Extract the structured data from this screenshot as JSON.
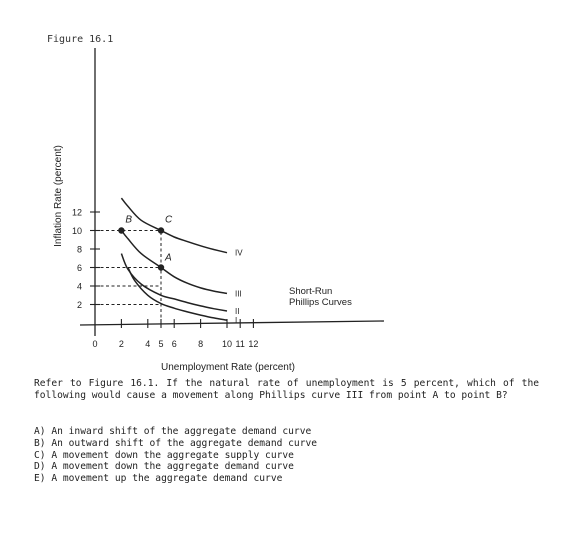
{
  "figure_label": "Figure 16.1",
  "chart_data": {
    "type": "line",
    "xlabel": "Unemployment Rate (percent)",
    "ylabel": "Inflation Rate (percent)",
    "xlim": [
      0,
      13
    ],
    "ylim": [
      0,
      14
    ],
    "x_ticks": [
      0,
      2,
      4,
      5,
      6,
      8,
      10,
      11,
      12
    ],
    "y_ticks": [
      2,
      4,
      6,
      8,
      10,
      12
    ],
    "series": [
      {
        "name": "I",
        "points": [
          [
            2.5,
            6.0
          ],
          [
            3.0,
            4.6
          ],
          [
            4.0,
            3.0
          ],
          [
            5.0,
            2.1
          ],
          [
            6.0,
            1.6
          ],
          [
            7.0,
            1.2
          ],
          [
            8.0,
            0.85
          ],
          [
            9.0,
            0.55
          ],
          [
            10.0,
            0.3
          ]
        ]
      },
      {
        "name": "II",
        "points": [
          [
            2.0,
            7.5
          ],
          [
            2.5,
            5.8
          ],
          [
            3.5,
            4.2
          ],
          [
            5.0,
            3.0
          ],
          [
            6.0,
            2.6
          ],
          [
            7.0,
            2.2
          ],
          [
            8.0,
            1.85
          ],
          [
            9.0,
            1.55
          ],
          [
            10.0,
            1.3
          ]
        ]
      },
      {
        "name": "III",
        "points": [
          [
            2.0,
            10.0
          ],
          [
            2.5,
            9.1
          ],
          [
            3.5,
            7.5
          ],
          [
            5.0,
            6.0
          ],
          [
            6.0,
            5.0
          ],
          [
            7.0,
            4.3
          ],
          [
            8.0,
            3.8
          ],
          [
            9.0,
            3.45
          ],
          [
            10.0,
            3.2
          ]
        ]
      },
      {
        "name": "IV",
        "points": [
          [
            2.0,
            13.5
          ],
          [
            2.5,
            12.6
          ],
          [
            3.5,
            11.1
          ],
          [
            5.0,
            10.0
          ],
          [
            6.0,
            9.3
          ],
          [
            7.0,
            8.8
          ],
          [
            8.0,
            8.35
          ],
          [
            9.0,
            7.95
          ],
          [
            10.0,
            7.6
          ]
        ]
      }
    ],
    "points": [
      {
        "label": "A",
        "x": 5,
        "y": 6
      },
      {
        "label": "B",
        "x": 2,
        "y": 10
      },
      {
        "label": "C",
        "x": 5,
        "y": 10
      }
    ],
    "reference_lines": [
      {
        "y": 10,
        "x_from": 0,
        "x_to": 5
      },
      {
        "y": 6,
        "x_from": 0,
        "x_to": 5
      },
      {
        "y": 4,
        "x_from": 0,
        "x_to": 5
      },
      {
        "y": 2,
        "x_from": 0,
        "x_to": 5
      },
      {
        "x": 5,
        "y_from": 0,
        "y_to": 10
      }
    ],
    "annotation": "Short-Run\nPhillips Curves"
  },
  "question": {
    "text": "Refer to Figure 16.1. If the natural rate of unemployment is 5 percent, which of the following would cause a movement along Phillips curve III from point A to point B?",
    "options": [
      "A) An inward shift of the aggregate demand curve",
      "B) An outward shift of the aggregate demand curve",
      "C) A movement down the aggregate supply curve",
      "D) A movement down the aggregate demand curve",
      "E) A movement up the aggregate demand curve"
    ]
  },
  "colors": {
    "ink": "#222222",
    "paper": "#ffffff"
  }
}
